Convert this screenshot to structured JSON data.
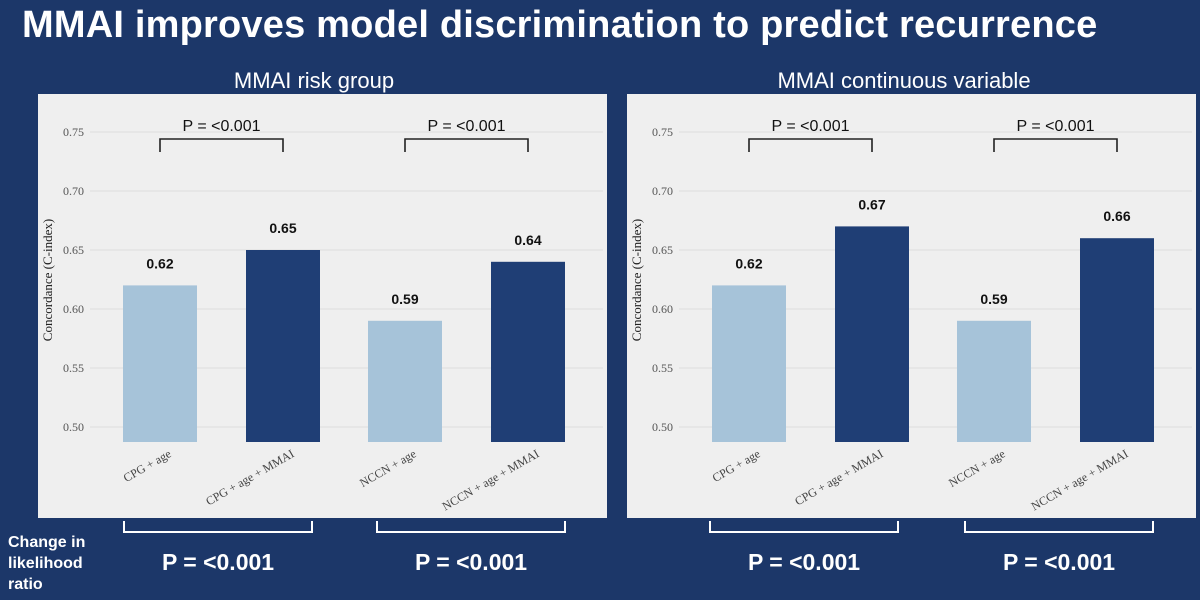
{
  "slide": {
    "title": "MMAI improves model discrimination to predict recurrence"
  },
  "bottom": {
    "row_label": "Change in likelihood ratio",
    "p_values": [
      "P = <0.001",
      "P = <0.001",
      "P = <0.001",
      "P = <0.001"
    ]
  },
  "colors": {
    "background": "#1c3769",
    "panel": "#efefef",
    "light_bar": "#a6c3d9",
    "dark_bar": "#1f3e75",
    "text_dark": "#111111"
  },
  "chart_data": [
    {
      "type": "bar",
      "title": "MMAI risk group",
      "ylabel": "Concordance (C-index)",
      "xlabel": "",
      "ylim": [
        0.488,
        0.77
      ],
      "yticks": [
        "0.75",
        "0.70",
        "0.65",
        "0.60",
        "0.55",
        "0.50"
      ],
      "grid": true,
      "categories": [
        "CPG + age",
        "CPG + age + MMAI",
        "NCCN + age",
        "NCCN + age + MMAI"
      ],
      "values": [
        0.62,
        0.65,
        0.59,
        0.64
      ],
      "labels": [
        "0.62",
        "0.65",
        "0.59",
        "0.64"
      ],
      "bar_colors": [
        "light",
        "dark",
        "light",
        "dark"
      ],
      "comparisons": [
        {
          "pair": [
            0,
            1
          ],
          "label": "P = <0.001"
        },
        {
          "pair": [
            2,
            3
          ],
          "label": "P = <0.001"
        }
      ]
    },
    {
      "type": "bar",
      "title": "MMAI continuous variable",
      "ylabel": "Concordance (C-index)",
      "xlabel": "",
      "ylim": [
        0.488,
        0.77
      ],
      "yticks": [
        "0.75",
        "0.70",
        "0.65",
        "0.60",
        "0.55",
        "0.50"
      ],
      "grid": true,
      "categories": [
        "CPG + age",
        "CPG + age + MMAI",
        "NCCN + age",
        "NCCN + age + MMAI"
      ],
      "values": [
        0.62,
        0.67,
        0.59,
        0.66
      ],
      "labels": [
        "0.62",
        "0.67",
        "0.59",
        "0.66"
      ],
      "bar_colors": [
        "light",
        "dark",
        "light",
        "dark"
      ],
      "comparisons": [
        {
          "pair": [
            0,
            1
          ],
          "label": "P = <0.001"
        },
        {
          "pair": [
            2,
            3
          ],
          "label": "P = <0.001"
        }
      ]
    }
  ]
}
